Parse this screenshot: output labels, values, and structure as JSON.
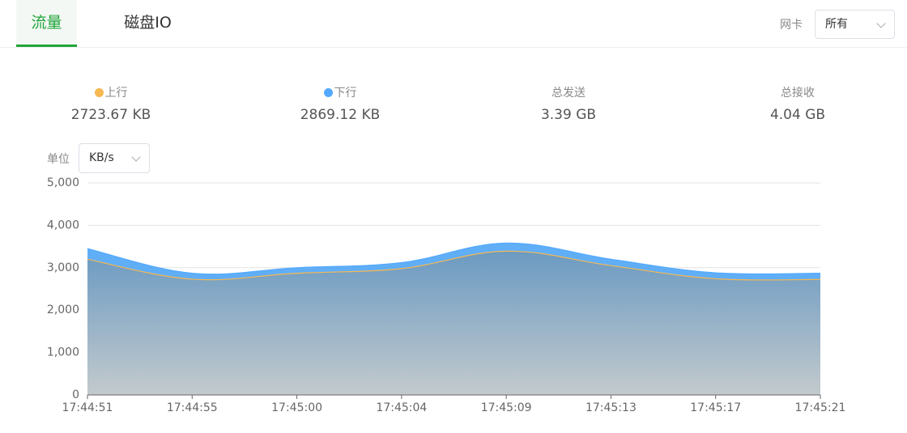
{
  "tabs": [
    "流量",
    "磁盘IO"
  ],
  "nic": {
    "label": "网卡",
    "value": "所有"
  },
  "series_stats": [
    "2723.67 KB",
    "2869.12 KB"
  ],
  "stats": [
    {
      "label": "总发送",
      "value": "3.39 GB"
    },
    {
      "label": "总接收",
      "value": "4.04 GB"
    }
  ],
  "unit": {
    "label": "单位",
    "value": "KB/s"
  },
  "chart_data": {
    "type": "area",
    "categories": [
      "17:44:51",
      "17:44:55",
      "17:45:00",
      "17:45:04",
      "17:45:09",
      "17:45:13",
      "17:45:17",
      "17:45:21"
    ],
    "series": [
      {
        "name": "上行",
        "color": "#f7b851",
        "fill": [
          "#6b9ac2",
          "#c3cacd"
        ],
        "values": [
          3200,
          2730,
          2870,
          2980,
          3390,
          3050,
          2740,
          2723.67
        ]
      },
      {
        "name": "下行",
        "color": "#52a9ff",
        "fill": [
          "#58aaf6",
          "#58aaf6"
        ],
        "values": [
          3450,
          2870,
          3000,
          3120,
          3580,
          3200,
          2880,
          2869.12
        ]
      }
    ],
    "ylim": [
      0,
      5000
    ],
    "yticks": [
      0,
      {
        "value": 1000,
        "label": "1,000"
      },
      {
        "value": 2000,
        "label": "2,000"
      },
      {
        "value": 3000,
        "label": "3,000"
      },
      {
        "value": 4000,
        "label": "4,000"
      },
      {
        "value": 5000,
        "label": "5,000"
      }
    ],
    "grid": true
  }
}
